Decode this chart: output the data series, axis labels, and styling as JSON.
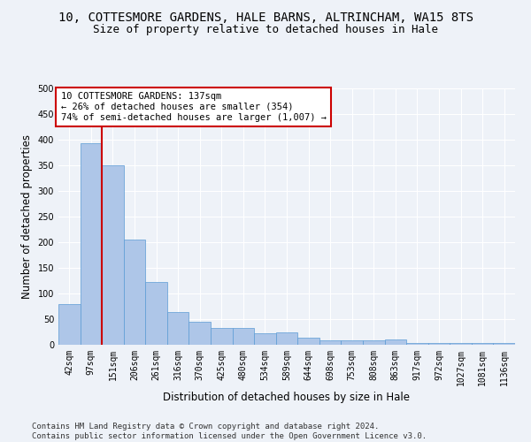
{
  "title": "10, COTTESMORE GARDENS, HALE BARNS, ALTRINCHAM, WA15 8TS",
  "subtitle": "Size of property relative to detached houses in Hale",
  "xlabel": "Distribution of detached houses by size in Hale",
  "ylabel": "Number of detached properties",
  "bar_values": [
    80,
    393,
    350,
    206,
    122,
    64,
    45,
    33,
    33,
    22,
    24,
    14,
    9,
    9,
    9,
    10,
    4,
    4,
    4,
    4,
    4
  ],
  "bar_labels": [
    "42sqm",
    "97sqm",
    "151sqm",
    "206sqm",
    "261sqm",
    "316sqm",
    "370sqm",
    "425sqm",
    "480sqm",
    "534sqm",
    "589sqm",
    "644sqm",
    "698sqm",
    "753sqm",
    "808sqm",
    "863sqm",
    "917sqm",
    "972sqm",
    "1027sqm",
    "1081sqm",
    "1136sqm"
  ],
  "bar_color": "#aec6e8",
  "bar_edge_color": "#5b9bd5",
  "annotation_text": "10 COTTESMORE GARDENS: 137sqm\n← 26% of detached houses are smaller (354)\n74% of semi-detached houses are larger (1,007) →",
  "annotation_box_color": "#ffffff",
  "annotation_box_edge": "#cc0000",
  "vline_x": 1.5,
  "vline_color": "#cc0000",
  "ylim": [
    0,
    500
  ],
  "yticks": [
    0,
    50,
    100,
    150,
    200,
    250,
    300,
    350,
    400,
    450,
    500
  ],
  "footer": "Contains HM Land Registry data © Crown copyright and database right 2024.\nContains public sector information licensed under the Open Government Licence v3.0.",
  "background_color": "#eef2f8",
  "grid_color": "#ffffff",
  "title_fontsize": 10,
  "subtitle_fontsize": 9,
  "axis_label_fontsize": 8.5,
  "tick_fontsize": 7,
  "footer_fontsize": 6.5
}
